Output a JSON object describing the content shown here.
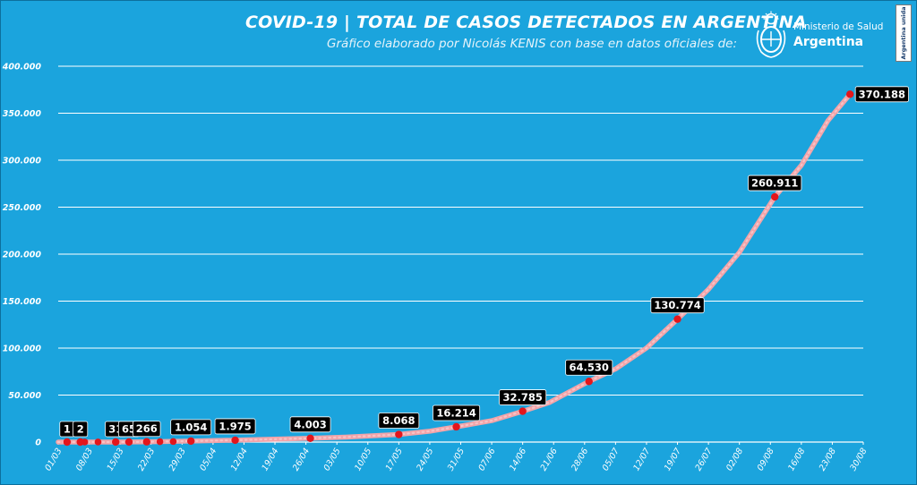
{
  "header": {
    "title": "COVID-19  |  TOTAL DE CASOS DETECTADOS EN ARGENTINA",
    "subtitle": "Gráfico elaborado por Nicolás KENIS con base en datos oficiales de:",
    "logo_line1": "Ministerio de Salud",
    "logo_line2": "Argentina",
    "badge": "Argentina unida"
  },
  "colors": {
    "background": "#1ba4dd",
    "line": "#f2a4a9",
    "point": "#e3161c",
    "label_box": "#000000",
    "grid": "#ffffff"
  },
  "chart_data": {
    "type": "line",
    "title": "COVID-19 | TOTAL DE CASOS DETECTADOS EN ARGENTINA",
    "xlabel": "",
    "ylabel": "",
    "x_range": [
      "2020-03-01",
      "2020-08-30"
    ],
    "ylim": [
      0,
      400000
    ],
    "grid": true,
    "y_ticks": [
      {
        "value": 0,
        "label": "0"
      },
      {
        "value": 50000,
        "label": "50.000"
      },
      {
        "value": 100000,
        "label": "100.000"
      },
      {
        "value": 150000,
        "label": "150.000"
      },
      {
        "value": 200000,
        "label": "200.000"
      },
      {
        "value": 250000,
        "label": "250.000"
      },
      {
        "value": 300000,
        "label": "300.000"
      },
      {
        "value": 350000,
        "label": "350.000"
      },
      {
        "value": 400000,
        "label": "400.000"
      }
    ],
    "x_ticks": [
      {
        "date": "2020-03-01",
        "label": "01/03"
      },
      {
        "date": "2020-03-08",
        "label": "08/03"
      },
      {
        "date": "2020-03-15",
        "label": "15/03"
      },
      {
        "date": "2020-03-22",
        "label": "22/03"
      },
      {
        "date": "2020-03-29",
        "label": "29/03"
      },
      {
        "date": "2020-04-05",
        "label": "05/04"
      },
      {
        "date": "2020-04-12",
        "label": "12/04"
      },
      {
        "date": "2020-04-19",
        "label": "19/04"
      },
      {
        "date": "2020-04-26",
        "label": "26/04"
      },
      {
        "date": "2020-05-03",
        "label": "03/05"
      },
      {
        "date": "2020-05-10",
        "label": "10/05"
      },
      {
        "date": "2020-05-17",
        "label": "17/05"
      },
      {
        "date": "2020-05-24",
        "label": "24/05"
      },
      {
        "date": "2020-05-31",
        "label": "31/05"
      },
      {
        "date": "2020-06-07",
        "label": "07/06"
      },
      {
        "date": "2020-06-14",
        "label": "14/06"
      },
      {
        "date": "2020-06-21",
        "label": "21/06"
      },
      {
        "date": "2020-06-28",
        "label": "28/06"
      },
      {
        "date": "2020-07-05",
        "label": "05/07"
      },
      {
        "date": "2020-07-12",
        "label": "12/07"
      },
      {
        "date": "2020-07-19",
        "label": "19/07"
      },
      {
        "date": "2020-07-26",
        "label": "26/07"
      },
      {
        "date": "2020-08-02",
        "label": "02/08"
      },
      {
        "date": "2020-08-09",
        "label": "09/08"
      },
      {
        "date": "2020-08-16",
        "label": "16/08"
      },
      {
        "date": "2020-08-23",
        "label": "23/08"
      },
      {
        "date": "2020-08-30",
        "label": "30/08"
      }
    ],
    "series": [
      {
        "points": [
          {
            "date": "2020-03-01",
            "value": 0
          },
          {
            "date": "2020-03-03",
            "value": 1
          },
          {
            "date": "2020-03-06",
            "value": 2
          },
          {
            "date": "2020-03-14",
            "value": 31
          },
          {
            "date": "2020-03-17",
            "value": 65
          },
          {
            "date": "2020-03-21",
            "value": 266
          },
          {
            "date": "2020-03-31",
            "value": 1054
          },
          {
            "date": "2020-04-10",
            "value": 1975
          },
          {
            "date": "2020-04-23",
            "value": 3500
          },
          {
            "date": "2020-04-27",
            "value": 4003
          },
          {
            "date": "2020-05-05",
            "value": 5200
          },
          {
            "date": "2020-05-17",
            "value": 8068
          },
          {
            "date": "2020-05-24",
            "value": 11500
          },
          {
            "date": "2020-05-30",
            "value": 16214
          },
          {
            "date": "2020-06-07",
            "value": 22800
          },
          {
            "date": "2020-06-14",
            "value": 32785
          },
          {
            "date": "2020-06-20",
            "value": 42000
          },
          {
            "date": "2020-06-29",
            "value": 64530
          },
          {
            "date": "2020-07-05",
            "value": 77800
          },
          {
            "date": "2020-07-12",
            "value": 100100
          },
          {
            "date": "2020-07-19",
            "value": 130774
          },
          {
            "date": "2020-07-26",
            "value": 162500
          },
          {
            "date": "2020-08-02",
            "value": 201900
          },
          {
            "date": "2020-08-10",
            "value": 260911
          },
          {
            "date": "2020-08-16",
            "value": 294500
          },
          {
            "date": "2020-08-22",
            "value": 342000
          },
          {
            "date": "2020-08-27",
            "value": 370188
          }
        ]
      }
    ],
    "highlighted": [
      {
        "date": "2020-03-03",
        "value": 1,
        "label": "1"
      },
      {
        "date": "2020-03-06",
        "value": 2,
        "label": "2"
      },
      {
        "date": "2020-03-14",
        "value": 31,
        "label": "31"
      },
      {
        "date": "2020-03-17",
        "value": 65,
        "label": "65"
      },
      {
        "date": "2020-03-21",
        "value": 266,
        "label": "266"
      },
      {
        "date": "2020-03-31",
        "value": 1054,
        "label": "1.054"
      },
      {
        "date": "2020-04-10",
        "value": 1975,
        "label": "1.975"
      },
      {
        "date": "2020-04-27",
        "value": 4003,
        "label": "4.003"
      },
      {
        "date": "2020-05-17",
        "value": 8068,
        "label": "8.068"
      },
      {
        "date": "2020-05-30",
        "value": 16214,
        "label": "16.214"
      },
      {
        "date": "2020-06-14",
        "value": 32785,
        "label": "32.785"
      },
      {
        "date": "2020-06-29",
        "value": 64530,
        "label": "64.530"
      },
      {
        "date": "2020-07-19",
        "value": 130774,
        "label": "130.774"
      },
      {
        "date": "2020-08-10",
        "value": 260911,
        "label": "260.911"
      },
      {
        "date": "2020-08-27",
        "value": 370188,
        "label": "370.188"
      }
    ],
    "unlabeled_markers": [
      {
        "date": "2020-03-07",
        "value": 5
      },
      {
        "date": "2020-03-10",
        "value": 12
      },
      {
        "date": "2020-03-24",
        "value": 387
      },
      {
        "date": "2020-03-27",
        "value": 589
      }
    ]
  }
}
